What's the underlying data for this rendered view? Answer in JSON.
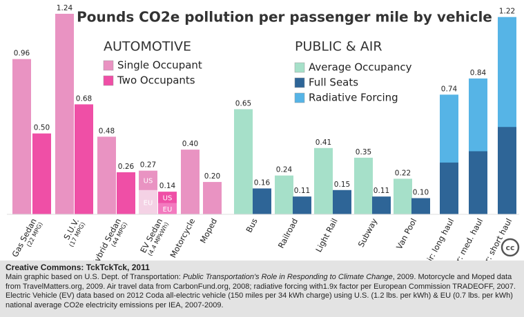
{
  "chart_data": {
    "type": "bar",
    "title": "Pounds CO2e pollution per passenger mile by vehicle",
    "headings": [
      "AUTOMOTIVE",
      "PUBLIC & AIR"
    ],
    "categories": [
      "Gas Sedan",
      "S.U.V.",
      "Hybrid Sedan",
      "EV Sedan",
      "Motorcycle",
      "Moped",
      "Bus",
      "Railroad",
      "Light Rail",
      "Subway",
      "Van Pool",
      "Air: long haul",
      "Air: med. haul",
      "Air: short haul"
    ],
    "category_notes": [
      "(22 MPG)",
      "(17 MPG)",
      "(44 MPG)",
      "(4.4 MPkWh)",
      null,
      null,
      null,
      null,
      null,
      null,
      null,
      null,
      null,
      null
    ],
    "ylim": [
      0,
      1.24
    ],
    "series": [
      {
        "name": "Single Occupant",
        "color": "#e993c2",
        "values": [
          0.96,
          1.24,
          0.48,
          0.27,
          0.4,
          0.2,
          null,
          null,
          null,
          null,
          null,
          null,
          null,
          null
        ],
        "value_labels": [
          "0.96",
          "1.24",
          "0.48",
          "0.27",
          "0.40",
          "0.20",
          null,
          null,
          null,
          null,
          null,
          null,
          null,
          null
        ]
      },
      {
        "name": "Two Occupants",
        "color": "#ef4fa6",
        "values": [
          0.5,
          0.68,
          0.26,
          0.14,
          null,
          null,
          null,
          null,
          null,
          null,
          null,
          null,
          null,
          null
        ],
        "value_labels": [
          "0.50",
          "0.68",
          "0.26",
          "0.14",
          null,
          null,
          null,
          null,
          null,
          null,
          null,
          null,
          null,
          null
        ]
      },
      {
        "name": "Average Occupancy",
        "color": "#a6e0c9",
        "values": [
          null,
          null,
          null,
          null,
          null,
          null,
          0.65,
          0.24,
          0.41,
          0.35,
          0.22,
          null,
          null,
          null
        ],
        "value_labels": [
          null,
          null,
          null,
          null,
          null,
          null,
          "0.65",
          "0.24",
          "0.41",
          "0.35",
          "0.22",
          null,
          null,
          null
        ]
      },
      {
        "name": "Full Seats",
        "color": "#2e6597",
        "values": [
          null,
          null,
          null,
          null,
          null,
          null,
          0.16,
          0.11,
          0.15,
          0.11,
          0.1,
          0.32,
          0.39,
          0.54
        ],
        "value_labels": [
          null,
          null,
          null,
          null,
          null,
          null,
          "0.16",
          "0.11",
          "0.15",
          "0.11",
          "0.10",
          null,
          null,
          null
        ]
      },
      {
        "name": "Radiative Forcing",
        "color": "#56b4e6",
        "values": [
          null,
          null,
          null,
          null,
          null,
          null,
          null,
          null,
          null,
          null,
          null,
          0.74,
          0.84,
          1.22
        ],
        "value_labels": [
          null,
          null,
          null,
          null,
          null,
          null,
          null,
          null,
          null,
          null,
          null,
          "0.74",
          "0.84",
          "1.22"
        ]
      }
    ],
    "ev_split": {
      "upper_label": "US",
      "lower_label": "EU",
      "lower_values": [
        0.15,
        0.07
      ],
      "lower_colors": [
        "#f4d2e5",
        "#f37abf"
      ]
    },
    "logo": "cc"
  },
  "footer": {
    "credit": "Creative Commons: TckTckTck, 2011",
    "note_parts": [
      "Main graphic based on U.S. Dept. of Transportation: ",
      "Public Transportation's Role in Responding to Climate Change",
      ", 2009.  Motorcycle and Moped data from TravelMatters.org, 2009.  Air travel data from CarbonFund.org, 2008; radiative forcing with1.9x factor per European Commission TRADEOFF, 2007. Electric Vehicle (EV) data based on 2012 Coda all-electric vehicle (150 miles per 34 kWh charge) using U.S. (1.2 lbs. per kWh) & EU (0.7 lbs. per kWh) national average CO2e electricity emissions per IEA, 2007-2009."
    ]
  }
}
